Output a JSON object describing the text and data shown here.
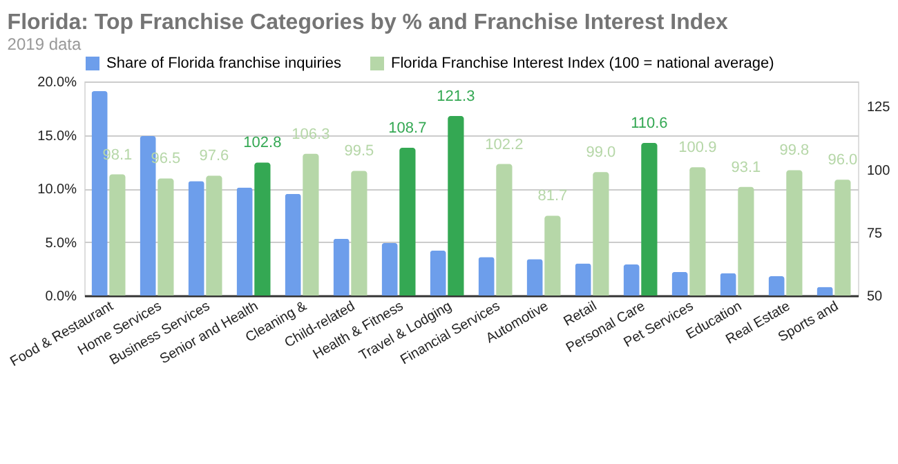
{
  "chart_data": {
    "type": "bar",
    "title": "Florida: Top Franchise Categories by % and Franchise Interest Index",
    "subtitle": "2019 data",
    "categories": [
      "Food & Restaurant",
      "Home Services",
      "Business Services",
      "Senior and Health",
      "Cleaning &",
      "Child-related",
      "Health & Fitness",
      "Travel & Lodging",
      "Financial Services",
      "Automotive",
      "Retail",
      "Personal Care",
      "Pet Services",
      "Education",
      "Real Estate",
      "Sports and"
    ],
    "series": [
      {
        "name": "Share of Florida franchise inquiries",
        "color": "#6d9eeb",
        "values": [
          19.1,
          14.9,
          10.7,
          10.1,
          9.5,
          5.3,
          4.9,
          4.2,
          3.6,
          3.4,
          3.0,
          2.9,
          2.2,
          2.1,
          1.8,
          0.8
        ]
      },
      {
        "name": "Florida Franchise Interest Index (100 = national average)",
        "color": "#b6d7a8",
        "axis": "y2",
        "values": [
          98.1,
          96.5,
          97.6,
          102.8,
          106.3,
          99.5,
          108.7,
          121.3,
          102.2,
          81.7,
          99.0,
          110.6,
          100.9,
          93.1,
          99.8,
          96.0
        ],
        "colors": [
          "#b6d7a8",
          "#b6d7a8",
          "#b6d7a8",
          "#34a853",
          "#b6d7a8",
          "#b6d7a8",
          "#34a853",
          "#34a853",
          "#b6d7a8",
          "#b6d7a8",
          "#b6d7a8",
          "#34a853",
          "#b6d7a8",
          "#b6d7a8",
          "#b6d7a8",
          "#b6d7a8"
        ],
        "value_labels": [
          "98.1",
          "96.5",
          "97.6",
          "102.8",
          "106.3",
          "99.5",
          "108.7",
          "121.3",
          "102.2",
          "81.7",
          "99.0",
          "110.6",
          "100.9",
          "93.1",
          "99.8",
          "96.0"
        ]
      }
    ],
    "ylim": [
      0,
      20
    ],
    "yticks": [
      {
        "value": 0,
        "label": "0.0%"
      },
      {
        "value": 5,
        "label": "5.0%"
      },
      {
        "value": 10,
        "label": "10.0%"
      },
      {
        "value": 15,
        "label": "15.0%"
      },
      {
        "value": 20,
        "label": "20.0%"
      }
    ],
    "y2lim": [
      50,
      135
    ],
    "y2ticks": [
      50,
      75,
      100,
      125
    ],
    "grid": "y",
    "legend": "top left"
  }
}
